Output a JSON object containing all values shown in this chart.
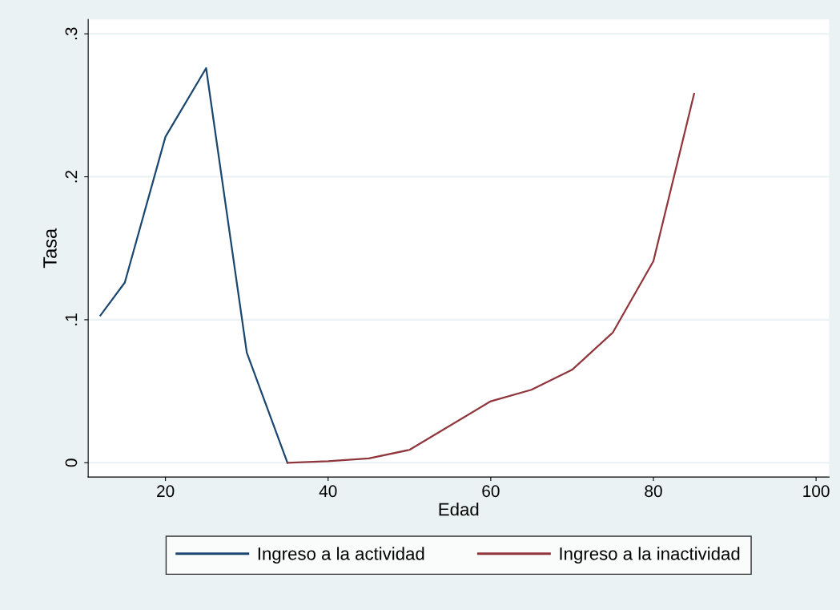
{
  "chart_data": {
    "type": "line",
    "xlabel": "Edad",
    "ylabel": "Tasa",
    "xlim": [
      10.5,
      101.6
    ],
    "xticks": [
      20,
      40,
      60,
      80,
      100
    ],
    "ylim": [
      -0.01,
      0.31
    ],
    "yticks": [
      {
        "value": 0,
        "label": "0"
      },
      {
        "value": 0.1,
        "label": ".1"
      },
      {
        "value": 0.2,
        "label": ".2"
      },
      {
        "value": 0.3,
        "label": ".3"
      }
    ],
    "grid": "y",
    "legend": "bottom",
    "marker": "none",
    "line_style": "solid",
    "series": [
      {
        "name": "Ingreso a la actividad",
        "color": "#1a476f",
        "x": [
          12,
          15,
          20,
          25,
          30,
          35
        ],
        "values": [
          0.103,
          0.126,
          0.228,
          0.276,
          0.077,
          0.0
        ]
      },
      {
        "name": "Ingreso a la inactividad",
        "color": "#90353b",
        "x": [
          35,
          40,
          45,
          50,
          60,
          65,
          70,
          75,
          80,
          85
        ],
        "values": [
          0.0,
          0.001,
          0.003,
          0.009,
          0.043,
          0.051,
          0.065,
          0.091,
          0.141,
          0.258
        ]
      }
    ]
  }
}
